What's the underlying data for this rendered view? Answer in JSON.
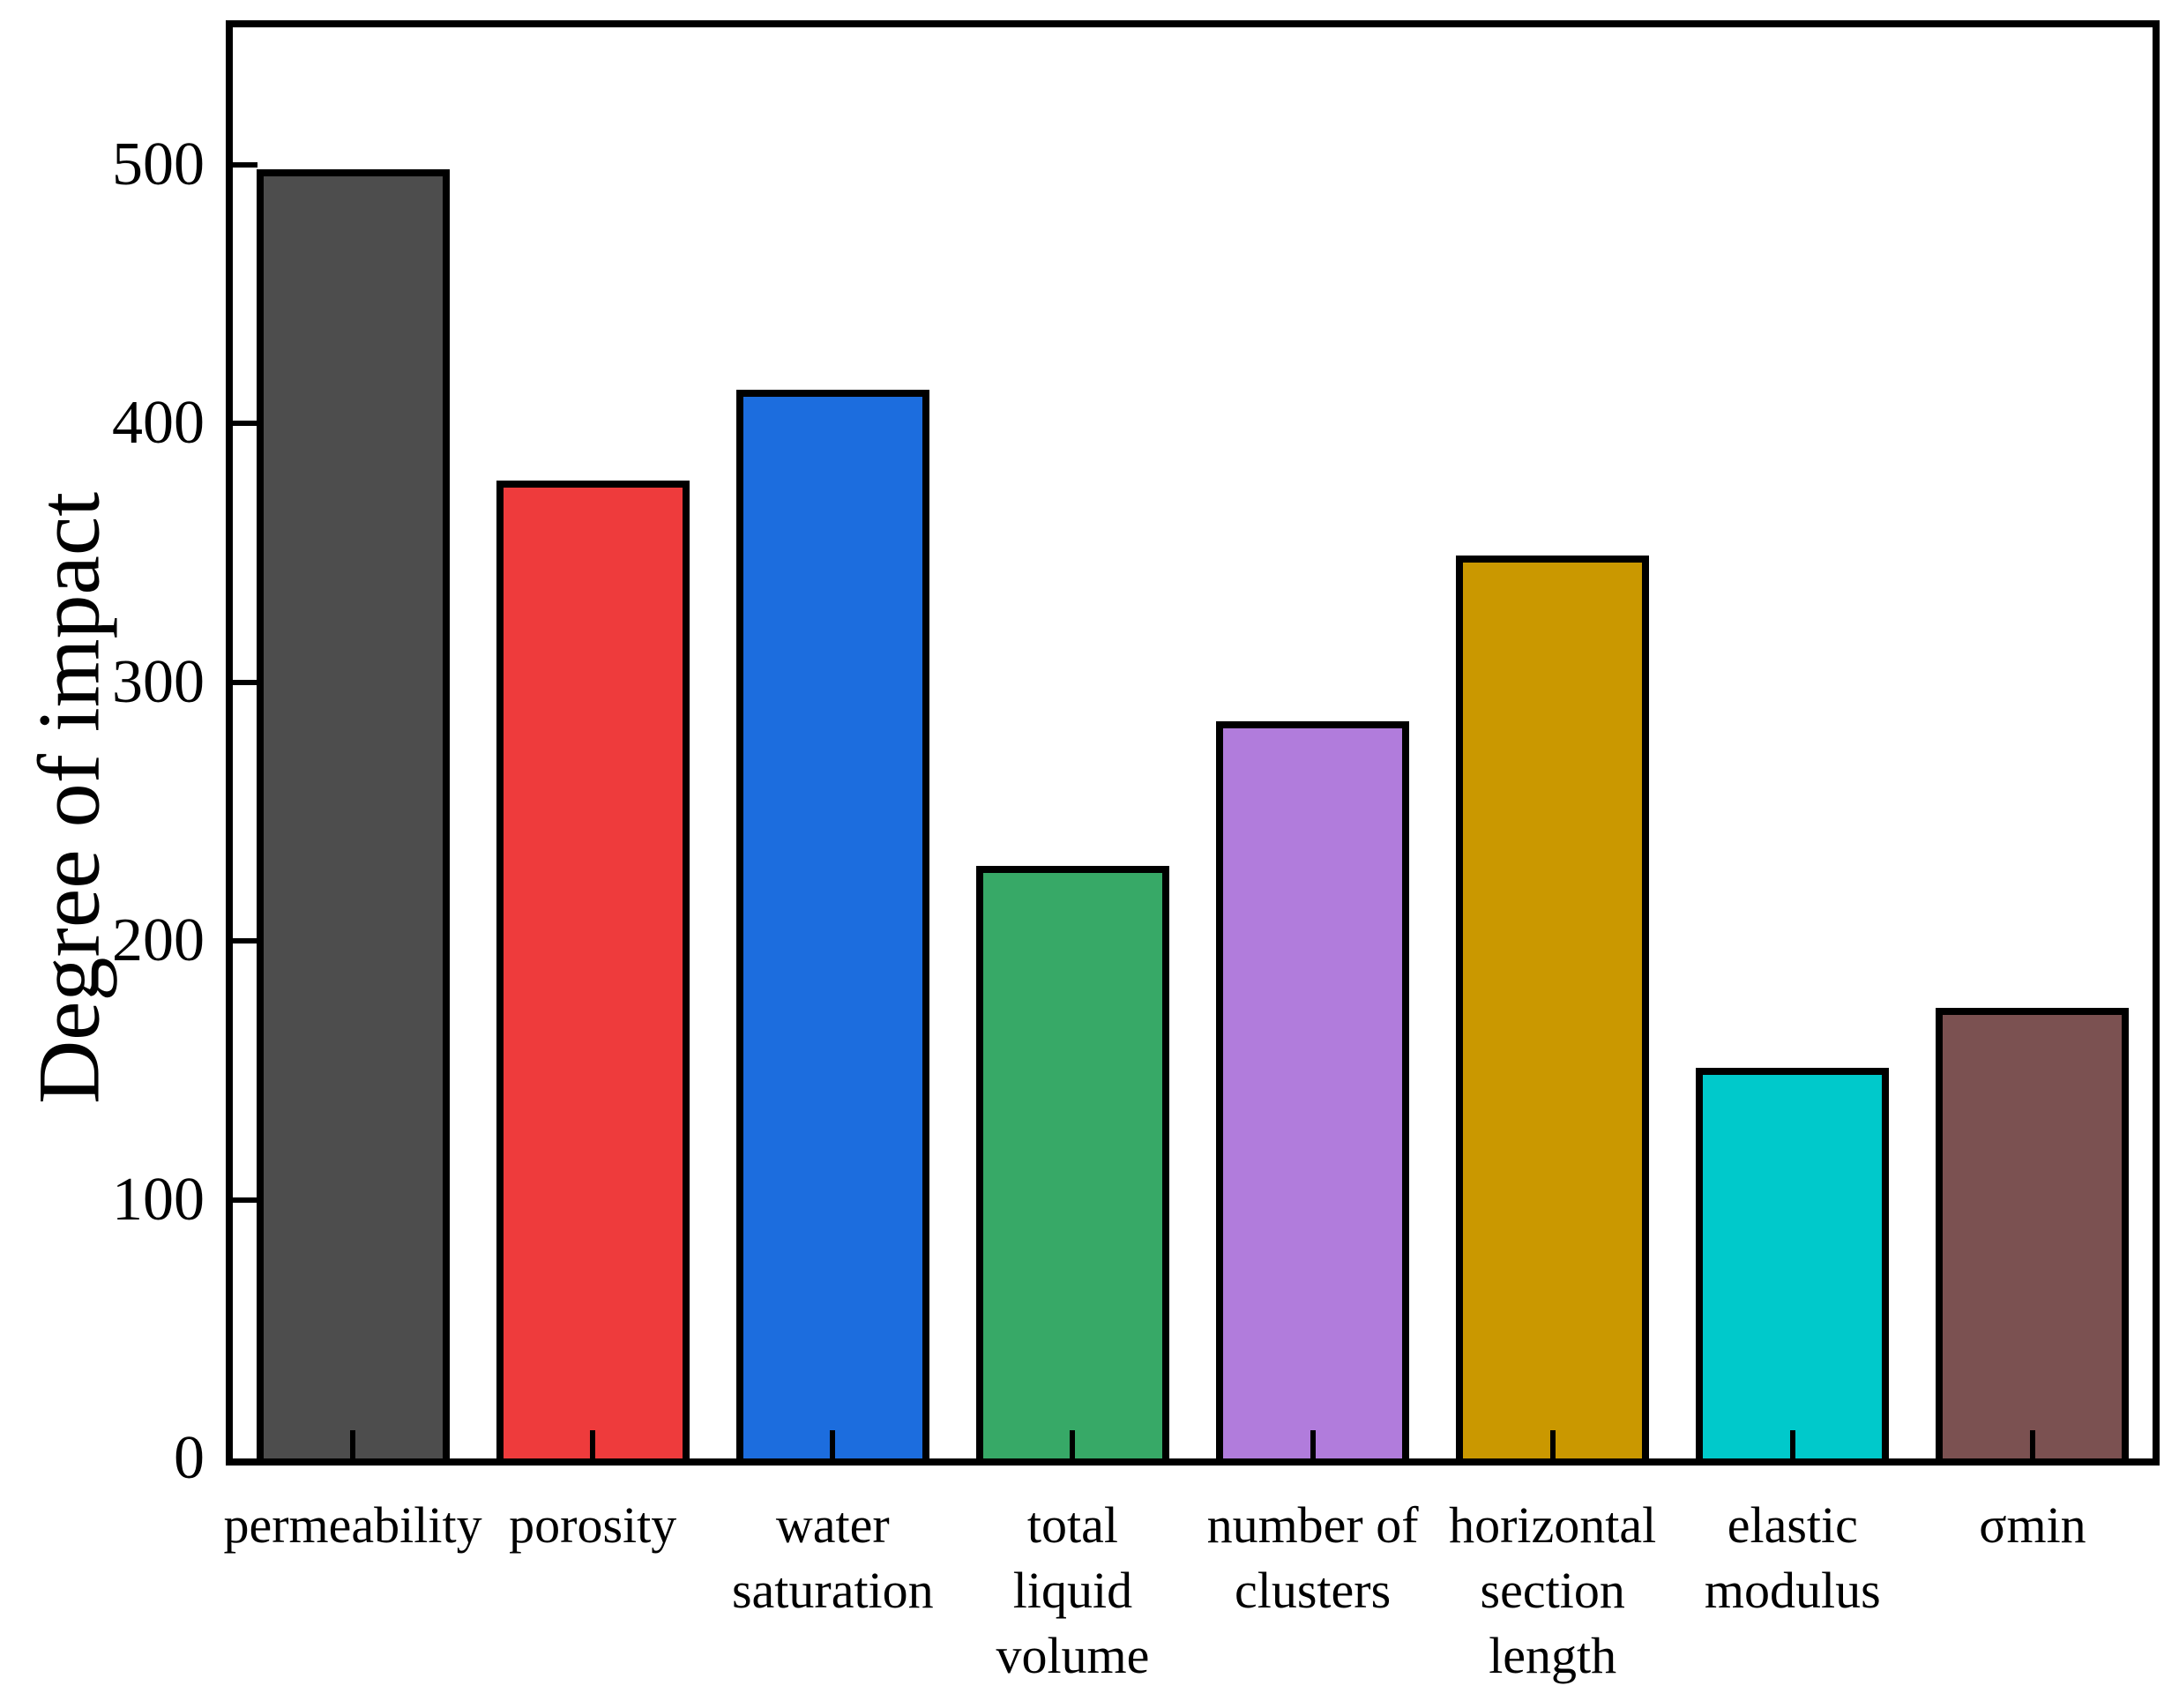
{
  "chart_data": {
    "type": "bar",
    "title": "",
    "xlabel": "",
    "ylabel": "Degree of impact",
    "ylim": [
      0,
      553
    ],
    "yticks": [
      0,
      100,
      200,
      300,
      400,
      500
    ],
    "grid": false,
    "legend": null,
    "tick_direction": "in",
    "frame": true,
    "background_color": "#ffffff",
    "axis_color": "#000000",
    "bar_edge_color": "#000000",
    "categories": [
      "permeability",
      "porosity",
      "water\nsaturation",
      "total\nliquid\nvolume",
      "number of\nclusters",
      "horizontal\nsection\nlength",
      "elastic\nmodulus",
      "σmin"
    ],
    "ids": [
      "permeability",
      "porosity",
      "water-saturation",
      "total-liquid-volume",
      "number-of-clusters",
      "horizontal-section-length",
      "elastic-modulus",
      "sigma-min"
    ],
    "values": [
      498,
      378,
      413,
      229,
      285,
      349,
      151,
      174
    ],
    "colors": [
      "#4d4d4d",
      "#ee3b3c",
      "#1c6dde",
      "#37a967",
      "#b17cdc",
      "#ca9800",
      "#00c9cb",
      "#7b5151"
    ]
  }
}
